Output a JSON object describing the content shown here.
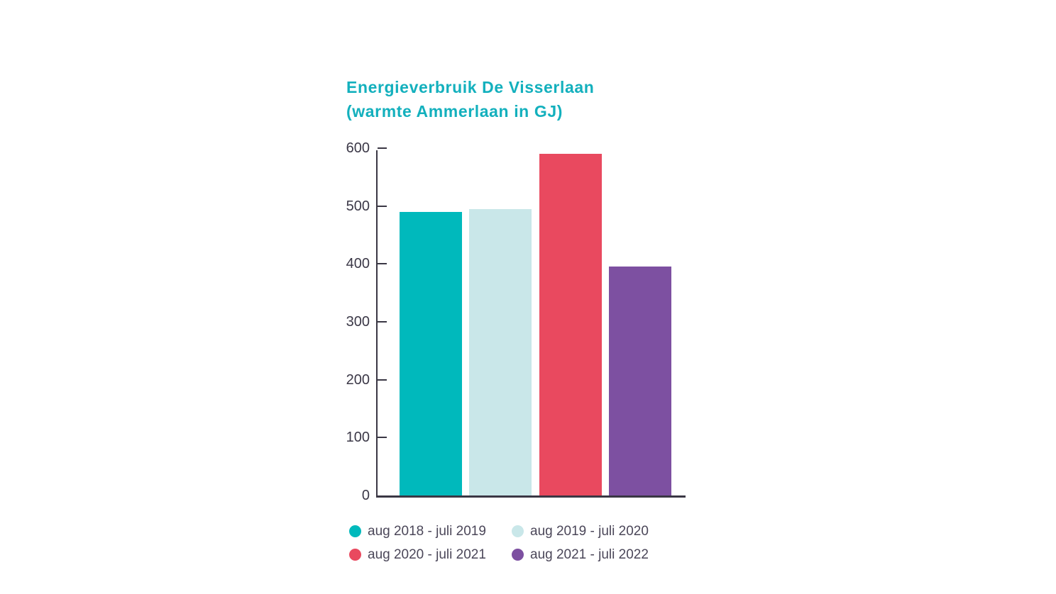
{
  "chart_data": {
    "type": "bar",
    "title": "Energieverbruik De Visserlaan",
    "subtitle": "(warmte Ammerlaan in GJ)",
    "categories": [
      "aug 2018 - juli 2019",
      "aug 2019 - juli 2020",
      "aug 2020 - juli 2021",
      "aug 2021 - juli 2022"
    ],
    "values": [
      490,
      495,
      590,
      395
    ],
    "bar_colors": [
      "#00b9bc",
      "#c9e7e9",
      "#e9495f",
      "#7d50a1"
    ],
    "ylim": [
      0,
      600
    ],
    "yticks": [
      0,
      100,
      200,
      300,
      400,
      500,
      600
    ],
    "grid": false,
    "legend_position": "bottom",
    "title_color": "#13b0bd",
    "axis_color": "#3a3744",
    "tick_label_color": "#3b3847",
    "legend_text_color": "#4b4759",
    "background_color": "#ffffff"
  }
}
